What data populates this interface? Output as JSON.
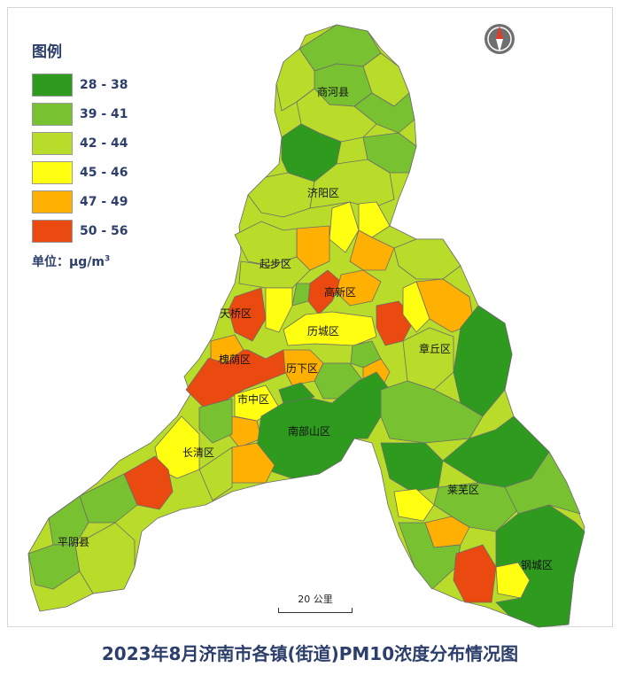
{
  "title": "2023年8月济南市各镇(街道)PM10浓度分布情况图",
  "legend": {
    "title": "图例",
    "items": [
      {
        "label": "28 - 38",
        "color": "#2e9b1e"
      },
      {
        "label": "39 - 41",
        "color": "#78c130"
      },
      {
        "label": "42 - 44",
        "color": "#b9dc2a"
      },
      {
        "label": "45 - 46",
        "color": "#ffff12"
      },
      {
        "label": "47 - 49",
        "color": "#ffb000"
      },
      {
        "label": "50 - 56",
        "color": "#ea4a10"
      }
    ],
    "unit_prefix": "单位：μg/m",
    "unit_sup": "3"
  },
  "scale_bar": {
    "label": "20 公里"
  },
  "compass": {
    "icon": "north-arrow-icon"
  },
  "regions": {
    "shanghe": "商河县",
    "jiyang": "济阳区",
    "qibu": "起步区",
    "gaoxin": "高新区",
    "tianqiao": "天桥区",
    "licheng": "历城区",
    "huaiyin": "槐荫区",
    "lixia": "历下区",
    "zhangqiu": "章丘区",
    "shizhong": "市中区",
    "nanbushan": "南部山区",
    "changqing": "长清区",
    "laiwu": "莱芜区",
    "pingyin": "平阴县",
    "gangcheng": "钢城区"
  }
}
